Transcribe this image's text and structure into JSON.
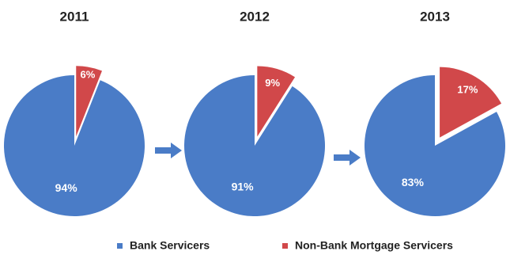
{
  "chart_data": [
    {
      "type": "pie",
      "title": "2011",
      "slices": [
        {
          "label": "Bank Servicers",
          "value": 94,
          "display": "94%"
        },
        {
          "label": "Non-Bank Mortgage Servicers",
          "value": 6,
          "display": "6%",
          "exploded": true
        }
      ]
    },
    {
      "type": "pie",
      "title": "2012",
      "slices": [
        {
          "label": "Bank Servicers",
          "value": 91,
          "display": "91%"
        },
        {
          "label": "Non-Bank Mortgage Servicers",
          "value": 9,
          "display": "9%",
          "exploded": true
        }
      ]
    },
    {
      "type": "pie",
      "title": "2013",
      "slices": [
        {
          "label": "Bank Servicers",
          "value": 83,
          "display": "83%"
        },
        {
          "label": "Non-Bank Mortgage Servicers",
          "value": 17,
          "display": "17%",
          "exploded": true
        }
      ]
    }
  ],
  "legend": {
    "placement": "bottom",
    "items": [
      {
        "label": "Bank Servicers",
        "color": "#4a7cc7"
      },
      {
        "label": "Non-Bank Mortgage Servicers",
        "color": "#d1484a"
      }
    ]
  },
  "colors": {
    "bank": "#4a7cc7",
    "nonbank": "#d1484a",
    "arrow": "#4a7cc7"
  },
  "arrows": [
    "right-arrow",
    "right-arrow"
  ]
}
